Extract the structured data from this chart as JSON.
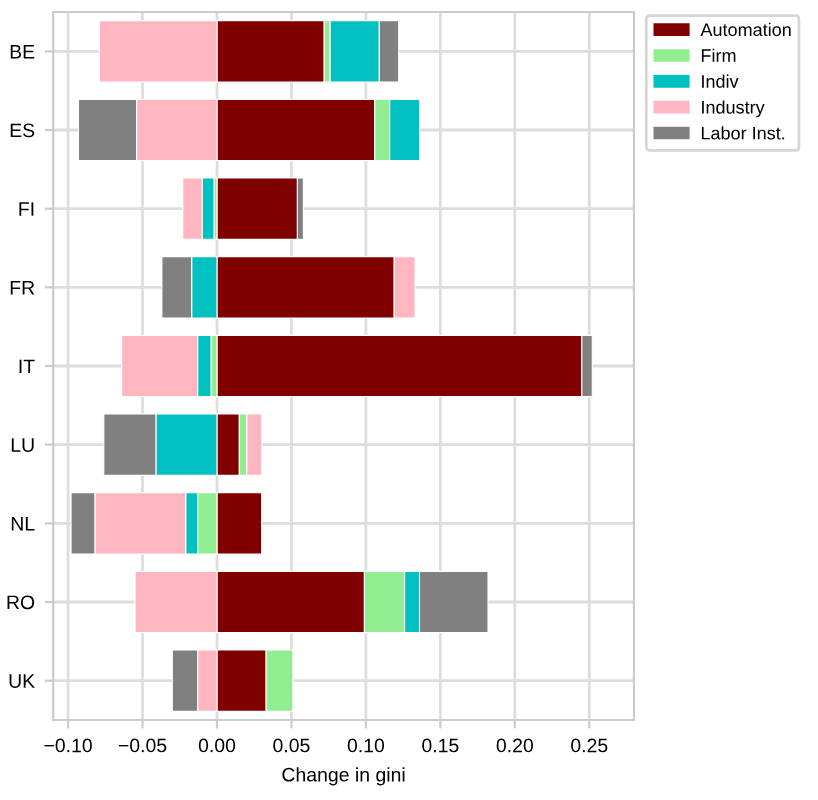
{
  "chart_data": {
    "type": "bar",
    "orientation": "horizontal",
    "stacked": true,
    "xlabel": "Change in gini",
    "categories": [
      "BE",
      "ES",
      "FI",
      "FR",
      "IT",
      "LU",
      "NL",
      "RO",
      "UK"
    ],
    "series": [
      {
        "name": "Automation",
        "color": "#800000",
        "values": [
          0.072,
          0.106,
          0.054,
          0.119,
          0.245,
          0.015,
          0.03,
          0.099,
          0.033
        ]
      },
      {
        "name": "Firm",
        "color": "#90ee90",
        "values": [
          0.004,
          0.01,
          -0.002,
          null,
          -0.004,
          0.005,
          -0.013,
          0.027,
          0.018
        ]
      },
      {
        "name": "Indiv",
        "color": "#00c0c0",
        "values": [
          0.033,
          0.02,
          -0.008,
          -0.017,
          -0.009,
          -0.041,
          -0.008,
          0.01,
          null
        ]
      },
      {
        "name": "Industry",
        "color": "#ffb6c1",
        "values": [
          -0.079,
          -0.054,
          -0.013,
          0.014,
          -0.051,
          0.01,
          -0.061,
          -0.055,
          -0.013
        ]
      },
      {
        "name": "Labor Inst.",
        "color": "#808080",
        "values": [
          0.013,
          -0.039,
          0.004,
          -0.02,
          0.007,
          -0.035,
          -0.016,
          0.046,
          -0.017
        ]
      }
    ],
    "xlim": [
      -0.11,
      0.28
    ],
    "xticks": [
      {
        "value": -0.1,
        "label": "−0.10"
      },
      {
        "value": -0.05,
        "label": "−0.05"
      },
      {
        "value": 0.0,
        "label": "0.00"
      },
      {
        "value": 0.05,
        "label": "0.05"
      },
      {
        "value": 0.1,
        "label": "0.10"
      },
      {
        "value": 0.15,
        "label": "0.15"
      },
      {
        "value": 0.2,
        "label": "0.20"
      },
      {
        "value": 0.25,
        "label": "0.25"
      }
    ],
    "grid": true,
    "legend": "right"
  }
}
